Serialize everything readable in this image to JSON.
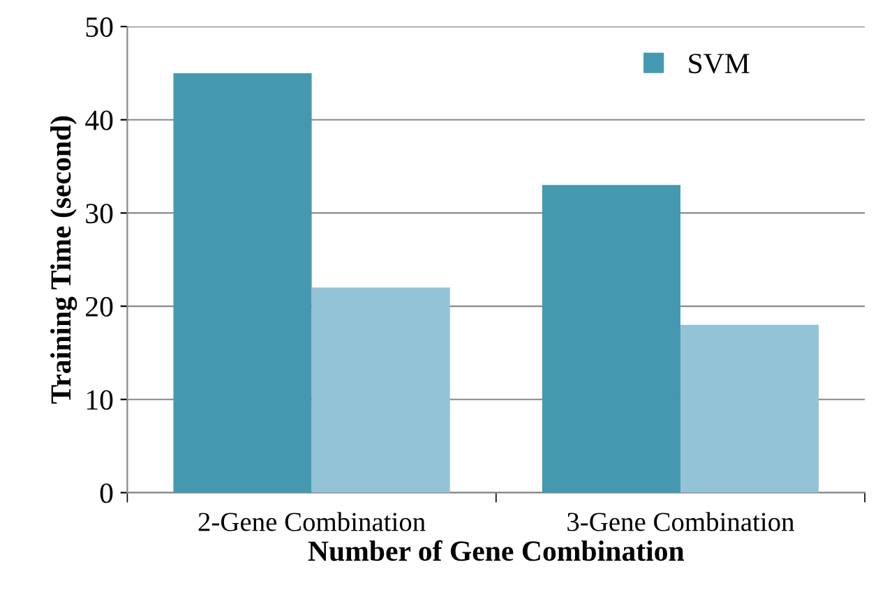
{
  "chart_data": {
    "type": "bar",
    "xlabel": "Number of Gene Combination",
    "ylabel": "Training Time (second)",
    "categories": [
      "2-Gene Combination",
      "3-Gene Combination"
    ],
    "series": [
      {
        "name": "SVM",
        "color": "#4499b0",
        "values": [
          45,
          33
        ]
      },
      {
        "color": "#93c4d5",
        "values": [
          22,
          18
        ]
      }
    ],
    "ylim": [
      0,
      50
    ],
    "yticks": [
      0,
      10,
      20,
      30,
      40,
      50
    ],
    "grid": "y",
    "legend": "top right"
  }
}
